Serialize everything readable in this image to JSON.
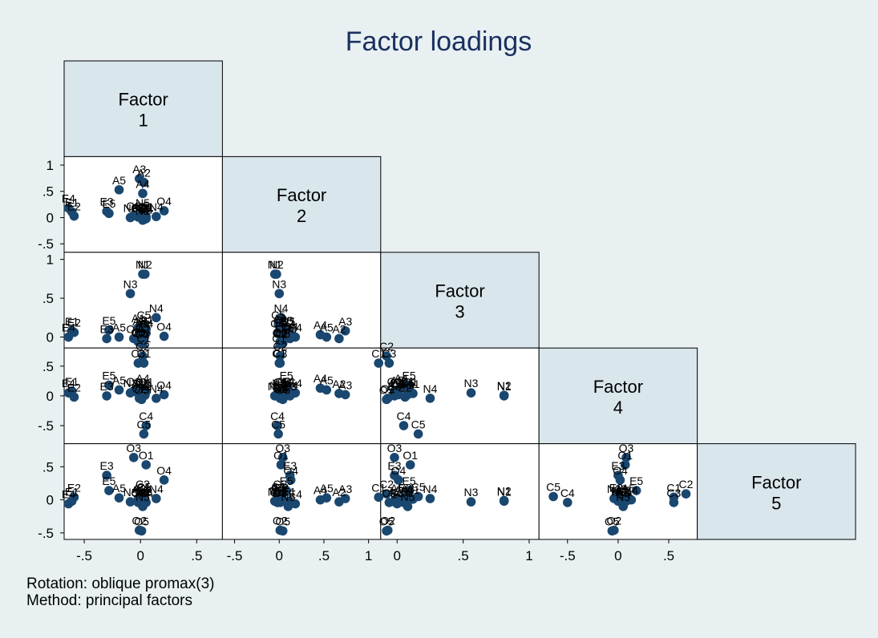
{
  "chart_data": {
    "type": "scatter",
    "title": "Factor loadings",
    "matrix": "lower-triangle scatterplot matrix",
    "diagonal_labels": [
      [
        "Factor",
        "1"
      ],
      [
        "Factor",
        "2"
      ],
      [
        "Factor",
        "3"
      ],
      [
        "Factor",
        "4"
      ],
      [
        "Factor",
        "5"
      ]
    ],
    "axes": [
      {
        "factor": 1,
        "range": [
          -0.65,
          0.7
        ],
        "ticks": [
          -0.5,
          0,
          0.5
        ],
        "tick_labels": [
          "-.5",
          "0",
          ".5"
        ]
      },
      {
        "factor": 2,
        "range": [
          -0.6,
          1.1
        ],
        "ticks": [
          -0.5,
          0,
          0.5,
          1
        ],
        "tick_labels": [
          "-.5",
          "0",
          ".5",
          "1"
        ]
      },
      {
        "factor": 3,
        "range": [
          -0.1,
          1.05
        ],
        "ticks": [
          0,
          0.5,
          1
        ],
        "tick_labels": [
          "0",
          ".5",
          "1"
        ]
      },
      {
        "factor": 4,
        "range": [
          -0.75,
          0.75
        ],
        "ticks": [
          -0.5,
          0,
          0.5
        ],
        "tick_labels": [
          "-.5",
          "0",
          ".5"
        ]
      },
      {
        "factor": 5,
        "range": [
          -0.55,
          0.8
        ],
        "ticks": [
          -0.5,
          0,
          0.5
        ],
        "tick_labels": [
          "-.5",
          "0",
          ".5"
        ]
      }
    ],
    "items": [
      {
        "name": "A1",
        "loadings": [
          -0.02,
          0.01,
          0.12,
          0.04,
          0.01
        ]
      },
      {
        "name": "A2",
        "loadings": [
          0.03,
          0.67,
          -0.02,
          0.04,
          -0.03
        ]
      },
      {
        "name": "A3",
        "loadings": [
          -0.01,
          0.74,
          0.08,
          0.02,
          0.02
        ]
      },
      {
        "name": "A4",
        "loadings": [
          0.02,
          0.46,
          0.03,
          0.13,
          0.0
        ]
      },
      {
        "name": "A5",
        "loadings": [
          -0.19,
          0.53,
          0.0,
          0.1,
          0.03
        ]
      },
      {
        "name": "C1",
        "loadings": [
          0.03,
          0.0,
          -0.14,
          0.55,
          0.04
        ]
      },
      {
        "name": "C2",
        "loadings": [
          0.02,
          0.01,
          -0.08,
          0.67,
          0.09
        ]
      },
      {
        "name": "C3",
        "loadings": [
          -0.02,
          0.01,
          -0.06,
          0.55,
          -0.04
        ]
      },
      {
        "name": "C4",
        "loadings": [
          0.05,
          -0.02,
          0.05,
          -0.5,
          -0.04
        ]
      },
      {
        "name": "C5",
        "loadings": [
          0.03,
          -0.01,
          0.16,
          -0.64,
          0.05
        ]
      },
      {
        "name": "E1",
        "loadings": [
          -0.61,
          0.11,
          0.08,
          0.08,
          -0.02
        ]
      },
      {
        "name": "E2",
        "loadings": [
          -0.59,
          0.03,
          0.06,
          -0.02,
          0.04
        ]
      },
      {
        "name": "E3",
        "loadings": [
          -0.3,
          0.12,
          -0.02,
          0.0,
          0.37
        ]
      },
      {
        "name": "E4",
        "loadings": [
          -0.64,
          0.18,
          0.0,
          0.05,
          -0.06
        ]
      },
      {
        "name": "E5",
        "loadings": [
          -0.28,
          0.08,
          0.09,
          0.18,
          0.14
        ]
      },
      {
        "name": "N1",
        "loadings": [
          0.02,
          -0.05,
          0.81,
          0.0,
          -0.02
        ]
      },
      {
        "name": "N2",
        "loadings": [
          0.04,
          -0.03,
          0.81,
          0.01,
          -0.01
        ]
      },
      {
        "name": "N3",
        "loadings": [
          -0.09,
          0.0,
          0.56,
          0.05,
          -0.03
        ]
      },
      {
        "name": "N4",
        "loadings": [
          0.14,
          0.02,
          0.25,
          -0.04,
          0.02
        ]
      },
      {
        "name": "N5",
        "loadings": [
          0.02,
          0.1,
          0.08,
          0.05,
          -0.1
        ]
      },
      {
        "name": "O1",
        "loadings": [
          0.05,
          0.02,
          0.1,
          0.07,
          0.53
        ]
      },
      {
        "name": "O2",
        "loadings": [
          -0.01,
          0.01,
          -0.07,
          -0.04,
          -0.46
        ]
      },
      {
        "name": "O3",
        "loadings": [
          -0.06,
          0.04,
          -0.02,
          0.08,
          0.64
        ]
      },
      {
        "name": "O4",
        "loadings": [
          0.21,
          0.13,
          0.01,
          0.02,
          0.3
        ]
      },
      {
        "name": "O5",
        "loadings": [
          0.01,
          0.04,
          -0.08,
          -0.06,
          -0.47
        ]
      }
    ],
    "notes": [
      "Rotation: oblique promax(3)",
      "Method: principal factors"
    ],
    "colors": {
      "background": "#e8f0f2",
      "plot_area": "#ffffff",
      "diagonal_fill": "#d9e6ec",
      "marker": "#1a476f",
      "title": "#1a3060"
    }
  }
}
